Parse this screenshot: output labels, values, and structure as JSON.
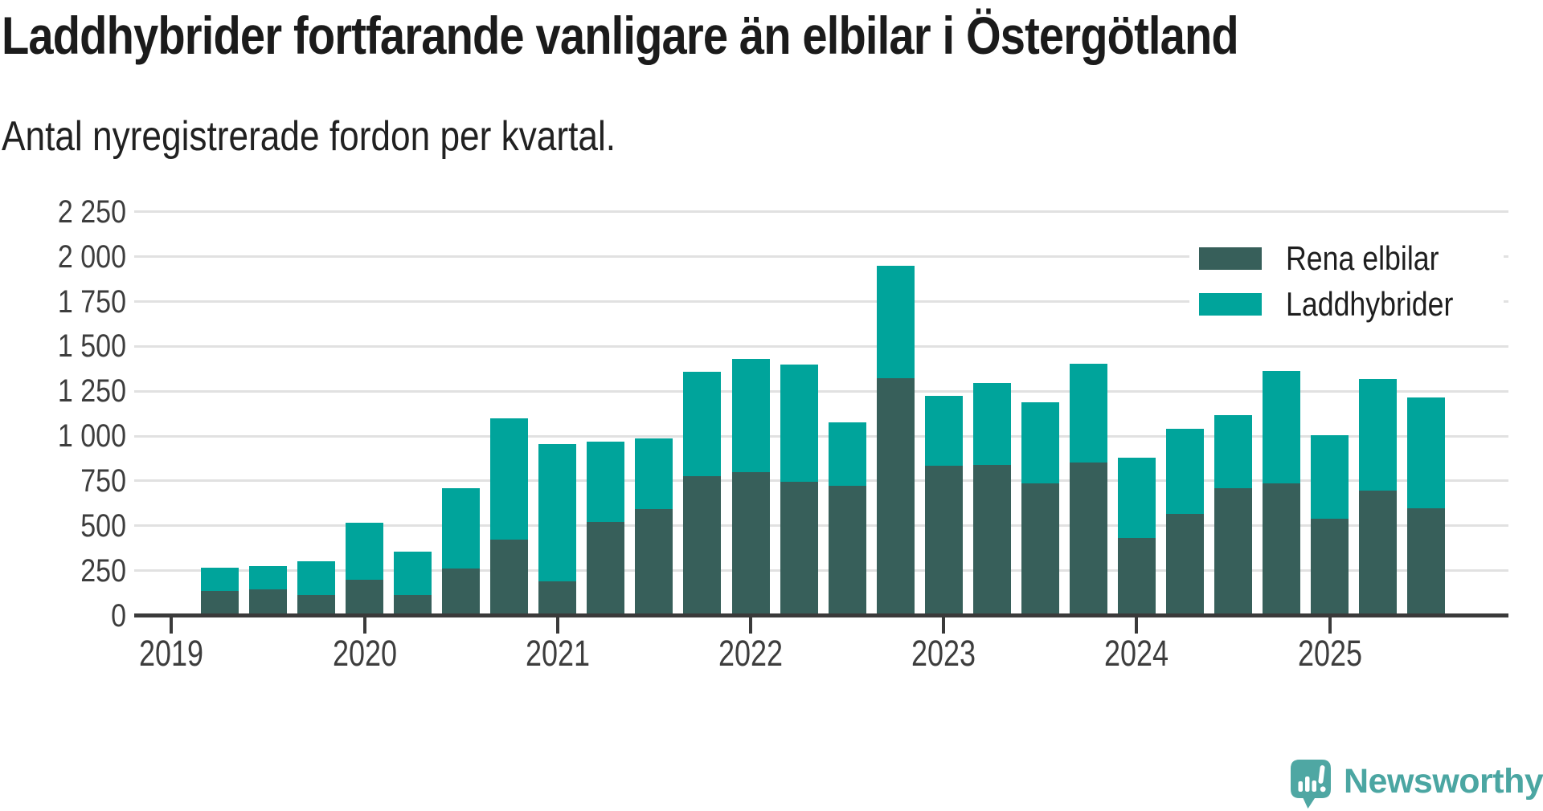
{
  "header": {
    "title": "Laddhybrider fortfarande vanligare än elbilar i Östergötland",
    "subtitle": "Antal nyregistrerade fordon per kvartal."
  },
  "footer": {
    "brand": "Newsworthy"
  },
  "colors": {
    "rena_elbilar": "#375f5a",
    "laddhybrider": "#00a49b",
    "axis": "#3a3a3a",
    "gridline": "#e1e1e1",
    "tick_text": "#3d3d3d",
    "logo_teal": "#4fa7a3",
    "logo_text": "#4ba6a2"
  },
  "chart_data": {
    "type": "bar",
    "stacked": true,
    "title": "Laddhybrider fortfarande vanligare än elbilar i Östergötland",
    "subtitle": "Antal nyregistrerade fordon per kvartal.",
    "xlabel": "",
    "ylabel": "",
    "categories": [
      "2019 Q2",
      "2019 Q3",
      "2019 Q4",
      "2020 Q1",
      "2020 Q2",
      "2020 Q3",
      "2020 Q4",
      "2021 Q1",
      "2021 Q2",
      "2021 Q3",
      "2021 Q4",
      "2022 Q1",
      "2022 Q2",
      "2022 Q3",
      "2022 Q4",
      "2023 Q1",
      "2023 Q2",
      "2023 Q3",
      "2023 Q4",
      "2024 Q1",
      "2024 Q2",
      "2024 Q3",
      "2024 Q4",
      "2025 Q1",
      "2025 Q2",
      "2025 Q3"
    ],
    "series": [
      {
        "name": "Rena elbilar",
        "color": "#375f5a",
        "values": [
          145,
          150,
          120,
          205,
          120,
          270,
          430,
          195,
          530,
          600,
          785,
          805,
          750,
          730,
          1330,
          840,
          845,
          745,
          860,
          440,
          575,
          715,
          745,
          545,
          705,
          605
        ]
      },
      {
        "name": "Laddhybrider",
        "color": "#00a49b",
        "values": [
          120,
          125,
          180,
          310,
          235,
          440,
          670,
          760,
          440,
          385,
          575,
          625,
          650,
          345,
          620,
          385,
          450,
          445,
          545,
          440,
          465,
          400,
          620,
          460,
          615,
          610
        ]
      }
    ],
    "x_tick_labels": [
      "2019",
      "2020",
      "2021",
      "2022",
      "2023",
      "2024",
      "2025"
    ],
    "y_ticks": [
      0,
      250,
      500,
      750,
      1000,
      1250,
      1500,
      1750,
      2000,
      2250
    ],
    "y_tick_labels": [
      "0",
      "250",
      "500",
      "750",
      "1 000",
      "1 250",
      "1 500",
      "1 750",
      "2 000",
      "2 250"
    ],
    "ylim": [
      0,
      2250
    ],
    "grid": "horizontal",
    "legend_position": "top-right"
  }
}
